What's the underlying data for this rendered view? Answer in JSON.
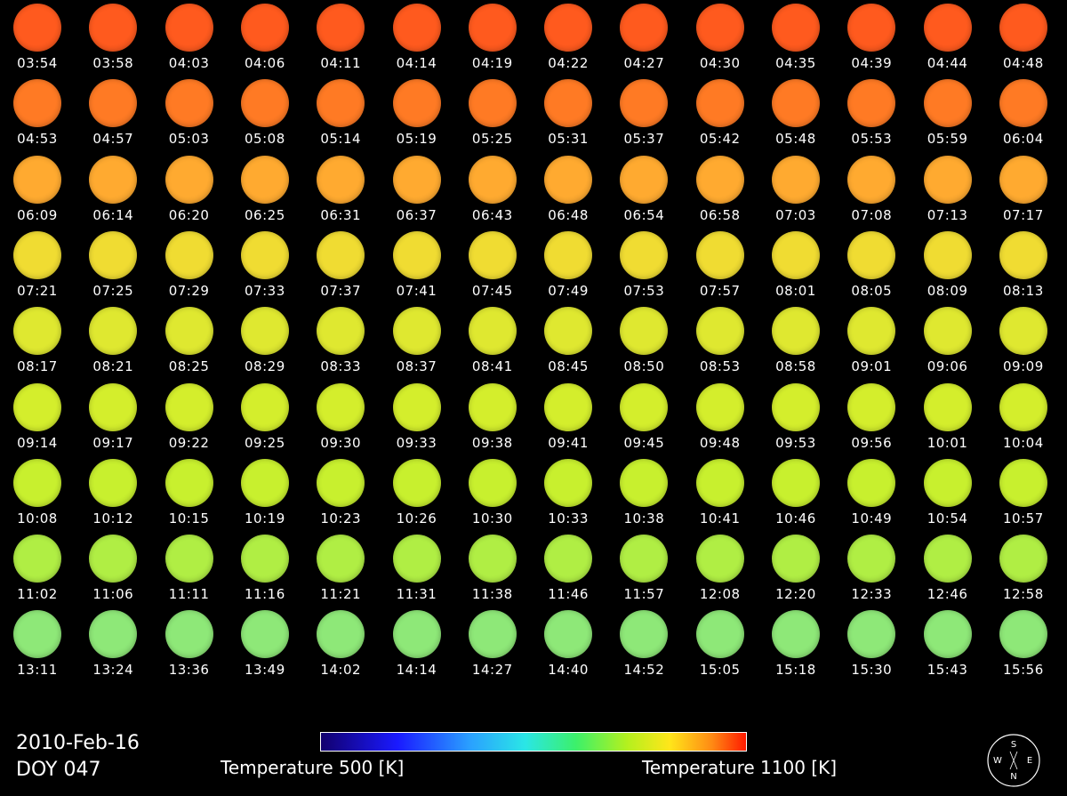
{
  "date": "2010-Feb-16",
  "doy": "DOY 047",
  "colorbar": {
    "min_label": "Temperature 500 [K]",
    "max_label": "Temperature 1100 [K]",
    "min_value": 500,
    "max_value": 1100
  },
  "compass": {
    "top": "S",
    "bottom": "N",
    "left": "W",
    "right": "E"
  },
  "rows": [
    {
      "times": [
        "03:54",
        "03:58",
        "04:03",
        "04:06",
        "04:11",
        "04:14",
        "04:19",
        "04:22",
        "04:27",
        "04:30",
        "04:35",
        "04:39",
        "04:44",
        "04:48"
      ],
      "color": "#ff5a1e"
    },
    {
      "times": [
        "04:53",
        "04:57",
        "05:03",
        "05:08",
        "05:14",
        "05:19",
        "05:25",
        "05:31",
        "05:37",
        "05:42",
        "05:48",
        "05:53",
        "05:59",
        "06:04"
      ],
      "color": "#ff7a24"
    },
    {
      "times": [
        "06:09",
        "06:14",
        "06:20",
        "06:25",
        "06:31",
        "06:37",
        "06:43",
        "06:48",
        "06:54",
        "06:58",
        "07:03",
        "07:08",
        "07:13",
        "07:17"
      ],
      "color": "#ffaa30"
    },
    {
      "times": [
        "07:21",
        "07:25",
        "07:29",
        "07:33",
        "07:37",
        "07:41",
        "07:45",
        "07:49",
        "07:53",
        "07:57",
        "08:01",
        "08:05",
        "08:09",
        "08:13"
      ],
      "color": "#f0dc32"
    },
    {
      "times": [
        "08:17",
        "08:21",
        "08:25",
        "08:29",
        "08:33",
        "08:37",
        "08:41",
        "08:45",
        "08:50",
        "08:53",
        "08:58",
        "09:01",
        "09:06",
        "09:09"
      ],
      "color": "#dfe830"
    },
    {
      "times": [
        "09:14",
        "09:17",
        "09:22",
        "09:25",
        "09:30",
        "09:33",
        "09:38",
        "09:41",
        "09:45",
        "09:48",
        "09:53",
        "09:56",
        "10:01",
        "10:04"
      ],
      "color": "#d4ee2c"
    },
    {
      "times": [
        "10:08",
        "10:12",
        "10:15",
        "10:19",
        "10:23",
        "10:26",
        "10:30",
        "10:33",
        "10:38",
        "10:41",
        "10:46",
        "10:49",
        "10:54",
        "10:57"
      ],
      "color": "#c8f02e"
    },
    {
      "times": [
        "11:02",
        "11:06",
        "11:11",
        "11:16",
        "11:21",
        "11:31",
        "11:38",
        "11:46",
        "11:57",
        "12:08",
        "12:20",
        "12:33",
        "12:46",
        "12:58"
      ],
      "color": "#b0ee44"
    },
    {
      "times": [
        "13:11",
        "13:24",
        "13:36",
        "13:49",
        "14:02",
        "14:14",
        "14:27",
        "14:40",
        "14:52",
        "15:05",
        "15:18",
        "15:30",
        "15:43",
        "15:56"
      ],
      "color": "#8ee878"
    }
  ]
}
